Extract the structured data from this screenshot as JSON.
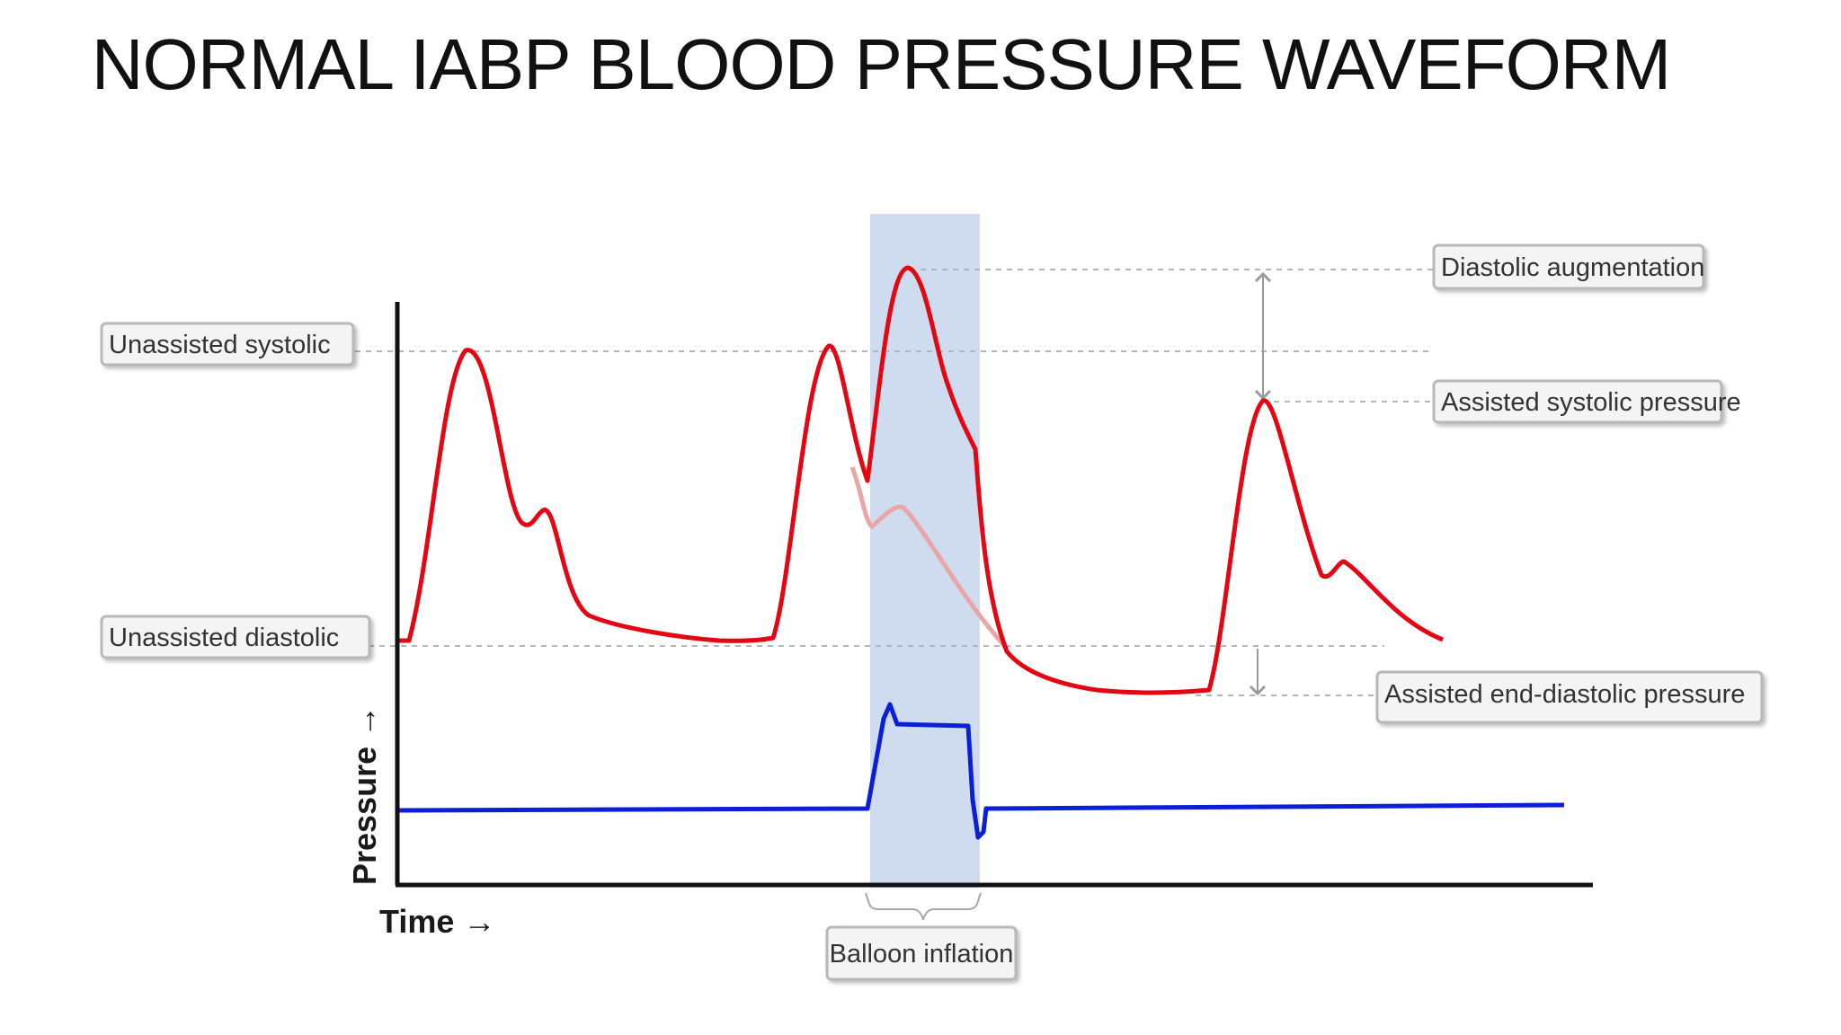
{
  "title": "NORMAL IABP BLOOD PRESSURE WAVEFORM",
  "axes": {
    "x_label": "Time →",
    "y_label": "Pressure →"
  },
  "callouts": {
    "unassisted_systolic": "Unassisted systolic",
    "unassisted_diastolic": "Unassisted diastolic",
    "diastolic_augmentation": "Diastolic augmentation",
    "assisted_systolic": "Assisted systolic pressure",
    "assisted_end_diastolic": "Assisted end-diastolic pressure",
    "balloon_inflation": "Balloon inflation"
  },
  "colors": {
    "pressure_wave": "#e30613",
    "unassisted_wave_ghost": "#e8a6a6",
    "balloon_wave": "#0a1fd6",
    "inflation_band": "#cfdcf0",
    "reference_line": "#b5b5b5",
    "callout_border": "#b8b8b8",
    "axis": "#111111"
  }
}
